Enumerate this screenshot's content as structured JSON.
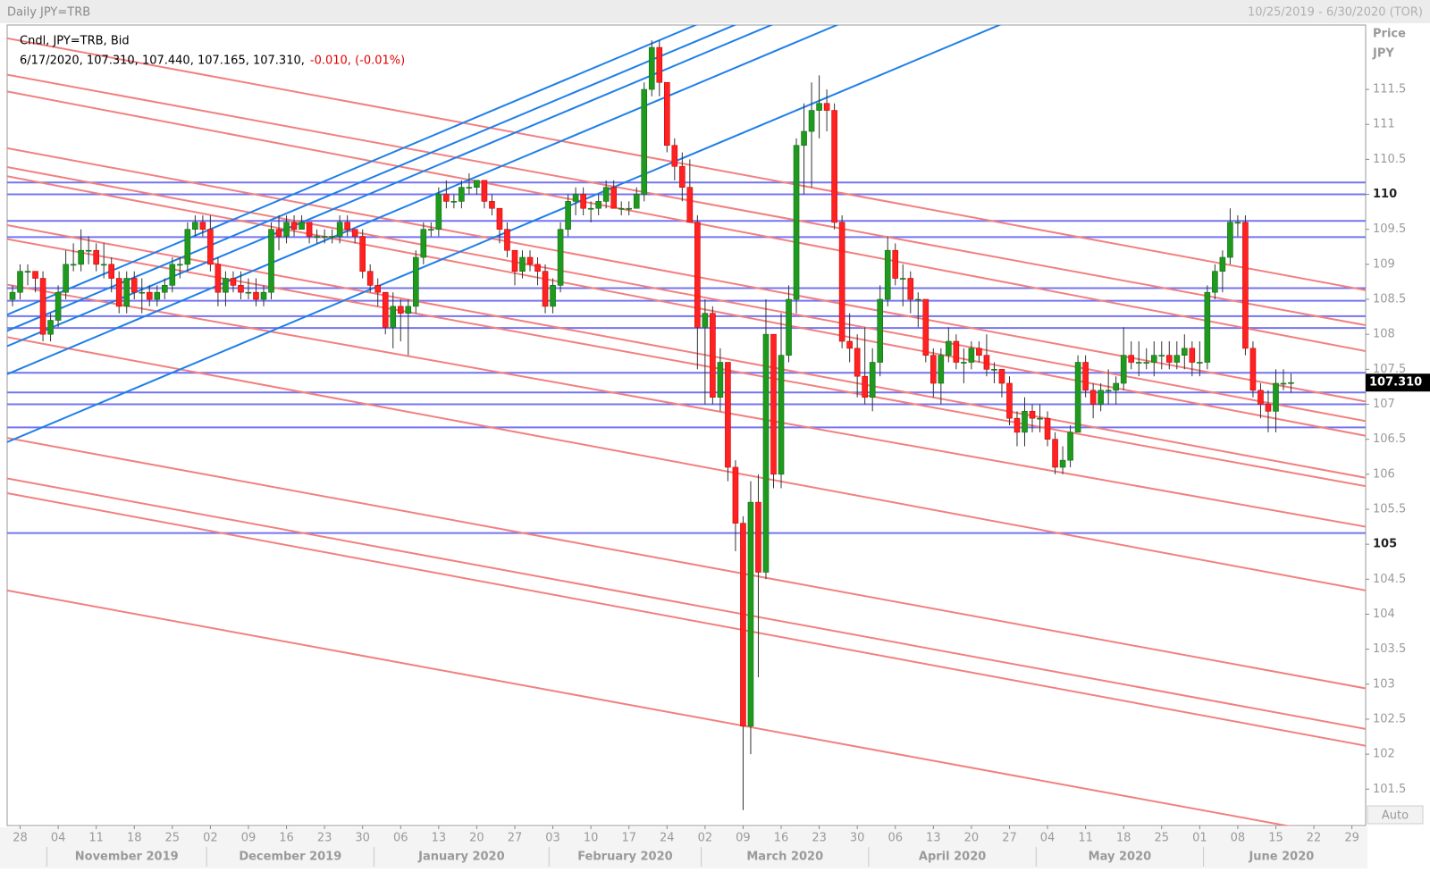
{
  "header": {
    "title": "Daily JPY=TRB",
    "range": "10/25/2019 - 6/30/2020 (TOR)"
  },
  "chart_data": {
    "type": "candlestick",
    "legend_title": "Cndl, JPY=TRB, Bid",
    "legend_values": "6/17/2020, 107.310, 107.440, 107.165, 107.310,",
    "legend_change": "-0.010, (-0.01%)",
    "axis_title": "Price",
    "axis_unit": "JPY",
    "scale_mode": "Auto",
    "up_color": "#1f9a1f",
    "down_color": "#ff2222",
    "ylim": [
      100.98,
      112.42
    ],
    "yticks": [
      101.5,
      102,
      102.5,
      103,
      103.5,
      104,
      104.5,
      105,
      105.5,
      106,
      106.5,
      107,
      107.5,
      108,
      108.5,
      109,
      109.5,
      110,
      110.5,
      111,
      111.5
    ],
    "major_tick_step": 5,
    "last_price": {
      "value": 107.31,
      "label": "107.310"
    },
    "xticks": [
      "28",
      "04",
      "11",
      "18",
      "25",
      "02",
      "09",
      "16",
      "23",
      "30",
      "06",
      "13",
      "20",
      "27",
      "03",
      "10",
      "17",
      "24",
      "02",
      "09",
      "16",
      "23",
      "30",
      "06",
      "13",
      "20",
      "27",
      "04",
      "11",
      "18",
      "25",
      "01",
      "08",
      "15",
      "22",
      "29"
    ],
    "months": [
      "November 2019",
      "December 2019",
      "January 2020",
      "February 2020",
      "March 2020",
      "April 2020",
      "May 2020",
      "June 2020"
    ],
    "ohlc": [
      [
        108.5,
        108.7,
        108.4,
        108.6
      ],
      [
        108.6,
        109.0,
        108.5,
        108.9
      ],
      [
        108.9,
        109.0,
        108.7,
        108.9
      ],
      [
        108.9,
        108.9,
        108.6,
        108.8
      ],
      [
        108.8,
        108.9,
        107.9,
        108.0
      ],
      [
        108.0,
        108.3,
        107.9,
        108.2
      ],
      [
        108.2,
        108.7,
        108.1,
        108.6
      ],
      [
        108.6,
        109.2,
        108.5,
        109.0
      ],
      [
        109.0,
        109.3,
        108.9,
        109.0
      ],
      [
        109.0,
        109.5,
        108.9,
        109.2
      ],
      [
        109.2,
        109.4,
        109.0,
        109.2
      ],
      [
        109.2,
        109.3,
        108.9,
        109.0
      ],
      [
        109.0,
        109.3,
        108.8,
        109.0
      ],
      [
        109.0,
        109.1,
        108.6,
        108.8
      ],
      [
        108.8,
        108.9,
        108.3,
        108.4
      ],
      [
        108.4,
        108.9,
        108.3,
        108.8
      ],
      [
        108.8,
        108.9,
        108.5,
        108.6
      ],
      [
        108.6,
        108.8,
        108.3,
        108.6
      ],
      [
        108.6,
        108.7,
        108.4,
        108.5
      ],
      [
        108.5,
        108.7,
        108.4,
        108.6
      ],
      [
        108.6,
        108.8,
        108.5,
        108.7
      ],
      [
        108.7,
        109.1,
        108.6,
        109.0
      ],
      [
        109.0,
        109.1,
        108.8,
        109.0
      ],
      [
        109.0,
        109.6,
        108.9,
        109.5
      ],
      [
        109.5,
        109.7,
        109.4,
        109.6
      ],
      [
        109.6,
        109.7,
        109.4,
        109.5
      ],
      [
        109.5,
        109.7,
        108.9,
        109.0
      ],
      [
        109.0,
        109.1,
        108.4,
        108.6
      ],
      [
        108.6,
        108.9,
        108.4,
        108.8
      ],
      [
        108.8,
        108.9,
        108.6,
        108.7
      ],
      [
        108.7,
        108.9,
        108.5,
        108.6
      ],
      [
        108.6,
        108.8,
        108.5,
        108.6
      ],
      [
        108.6,
        108.8,
        108.4,
        108.5
      ],
      [
        108.5,
        108.7,
        108.4,
        108.6
      ],
      [
        108.6,
        109.6,
        108.5,
        109.5
      ],
      [
        109.5,
        109.7,
        109.2,
        109.4
      ],
      [
        109.4,
        109.7,
        109.3,
        109.6
      ],
      [
        109.6,
        109.7,
        109.4,
        109.5
      ],
      [
        109.5,
        109.7,
        109.5,
        109.6
      ],
      [
        109.6,
        109.6,
        109.3,
        109.4
      ],
      [
        109.4,
        109.5,
        109.3,
        109.4
      ],
      [
        109.4,
        109.5,
        109.3,
        109.4
      ],
      [
        109.4,
        109.5,
        109.3,
        109.4
      ],
      [
        109.4,
        109.7,
        109.3,
        109.6
      ],
      [
        109.6,
        109.7,
        109.4,
        109.5
      ],
      [
        109.5,
        109.5,
        109.3,
        109.4
      ],
      [
        109.4,
        109.5,
        108.8,
        108.9
      ],
      [
        108.9,
        109.0,
        108.6,
        108.7
      ],
      [
        108.7,
        108.8,
        108.4,
        108.6
      ],
      [
        108.6,
        108.6,
        108.0,
        108.1
      ],
      [
        108.1,
        108.6,
        107.8,
        108.4
      ],
      [
        108.4,
        108.5,
        107.9,
        108.3
      ],
      [
        108.3,
        108.5,
        107.7,
        108.4
      ],
      [
        108.4,
        109.2,
        108.3,
        109.1
      ],
      [
        109.1,
        109.6,
        109.0,
        109.5
      ],
      [
        109.5,
        109.6,
        109.4,
        109.5
      ],
      [
        109.5,
        110.1,
        109.4,
        110.0
      ],
      [
        110.0,
        110.2,
        109.8,
        109.9
      ],
      [
        109.9,
        110.0,
        109.8,
        109.9
      ],
      [
        109.9,
        110.2,
        109.8,
        110.1
      ],
      [
        110.1,
        110.3,
        110.0,
        110.1
      ],
      [
        110.1,
        110.2,
        110.0,
        110.2
      ],
      [
        110.2,
        110.2,
        109.8,
        109.9
      ],
      [
        109.9,
        110.0,
        109.7,
        109.8
      ],
      [
        109.8,
        109.8,
        109.3,
        109.5
      ],
      [
        109.5,
        109.6,
        109.1,
        109.2
      ],
      [
        109.2,
        109.2,
        108.7,
        108.9
      ],
      [
        108.9,
        109.2,
        108.8,
        109.1
      ],
      [
        109.1,
        109.2,
        108.9,
        109.0
      ],
      [
        109.0,
        109.1,
        108.7,
        108.9
      ],
      [
        108.9,
        109.0,
        108.3,
        108.4
      ],
      [
        108.4,
        108.8,
        108.3,
        108.7
      ],
      [
        108.7,
        109.6,
        108.6,
        109.5
      ],
      [
        109.5,
        110.0,
        109.4,
        109.9
      ],
      [
        109.9,
        110.1,
        109.7,
        110.0
      ],
      [
        110.0,
        110.1,
        109.7,
        109.8
      ],
      [
        109.8,
        109.9,
        109.6,
        109.8
      ],
      [
        109.8,
        110.0,
        109.7,
        109.9
      ],
      [
        109.9,
        110.2,
        109.8,
        110.1
      ],
      [
        110.1,
        110.2,
        109.8,
        109.8
      ],
      [
        109.8,
        109.9,
        109.7,
        109.8
      ],
      [
        109.8,
        109.9,
        109.7,
        109.8
      ],
      [
        109.8,
        110.1,
        109.8,
        110.0
      ],
      [
        110.0,
        111.6,
        109.9,
        111.5
      ],
      [
        111.5,
        112.2,
        111.4,
        112.1
      ],
      [
        112.1,
        112.2,
        111.4,
        111.6
      ],
      [
        111.6,
        111.6,
        110.6,
        110.7
      ],
      [
        110.7,
        110.8,
        110.2,
        110.4
      ],
      [
        110.4,
        110.6,
        109.9,
        110.1
      ],
      [
        110.1,
        110.5,
        109.6,
        109.6
      ],
      [
        109.6,
        109.7,
        107.5,
        108.1
      ],
      [
        108.1,
        108.5,
        107.0,
        108.3
      ],
      [
        108.3,
        108.4,
        107.0,
        107.1
      ],
      [
        107.1,
        107.8,
        106.9,
        107.6
      ],
      [
        107.6,
        107.6,
        105.9,
        106.1
      ],
      [
        106.1,
        106.2,
        104.9,
        105.3
      ],
      [
        105.3,
        105.4,
        101.2,
        102.4
      ],
      [
        102.4,
        105.9,
        102.0,
        105.6
      ],
      [
        105.6,
        106.0,
        103.1,
        104.6
      ],
      [
        104.6,
        108.5,
        104.5,
        108.0
      ],
      [
        108.0,
        108.0,
        105.8,
        106.0
      ],
      [
        106.0,
        108.3,
        105.8,
        107.7
      ],
      [
        107.7,
        108.7,
        107.6,
        108.5
      ],
      [
        108.5,
        110.8,
        108.3,
        110.7
      ],
      [
        110.7,
        111.3,
        110.0,
        110.9
      ],
      [
        110.9,
        111.6,
        110.1,
        111.2
      ],
      [
        111.2,
        111.7,
        110.8,
        111.3
      ],
      [
        111.3,
        111.5,
        110.9,
        111.2
      ],
      [
        111.2,
        111.3,
        109.5,
        109.6
      ],
      [
        109.6,
        109.7,
        107.8,
        107.9
      ],
      [
        107.9,
        108.3,
        107.6,
        107.8
      ],
      [
        107.8,
        108.0,
        107.1,
        107.4
      ],
      [
        107.4,
        108.1,
        107.0,
        107.1
      ],
      [
        107.1,
        107.8,
        106.9,
        107.6
      ],
      [
        107.6,
        108.7,
        107.4,
        108.5
      ],
      [
        108.5,
        109.4,
        108.4,
        109.2
      ],
      [
        109.2,
        109.3,
        108.7,
        108.8
      ],
      [
        108.8,
        109.0,
        108.4,
        108.8
      ],
      [
        108.8,
        108.9,
        108.3,
        108.5
      ],
      [
        108.5,
        108.6,
        108.1,
        108.5
      ],
      [
        108.5,
        108.5,
        107.6,
        107.7
      ],
      [
        107.7,
        107.8,
        107.1,
        107.3
      ],
      [
        107.3,
        107.8,
        107.0,
        107.7
      ],
      [
        107.7,
        108.1,
        107.6,
        107.9
      ],
      [
        107.9,
        108.0,
        107.5,
        107.6
      ],
      [
        107.6,
        107.8,
        107.3,
        107.6
      ],
      [
        107.6,
        107.9,
        107.5,
        107.8
      ],
      [
        107.8,
        107.9,
        107.6,
        107.7
      ],
      [
        107.7,
        108.0,
        107.4,
        107.5
      ],
      [
        107.5,
        107.6,
        107.3,
        107.5
      ],
      [
        107.5,
        107.5,
        107.1,
        107.3
      ],
      [
        107.3,
        107.4,
        106.7,
        106.8
      ],
      [
        106.8,
        106.9,
        106.4,
        106.6
      ],
      [
        106.6,
        107.1,
        106.4,
        106.9
      ],
      [
        106.9,
        107.0,
        106.6,
        106.8
      ],
      [
        106.8,
        107.0,
        106.6,
        106.8
      ],
      [
        106.8,
        106.9,
        106.4,
        106.5
      ],
      [
        106.5,
        106.6,
        106.0,
        106.1
      ],
      [
        106.1,
        106.4,
        106.0,
        106.2
      ],
      [
        106.2,
        106.7,
        106.1,
        106.6
      ],
      [
        106.6,
        107.7,
        106.6,
        107.6
      ],
      [
        107.6,
        107.7,
        107.1,
        107.2
      ],
      [
        107.2,
        107.3,
        106.8,
        107.0
      ],
      [
        107.0,
        107.3,
        106.9,
        107.2
      ],
      [
        107.2,
        107.5,
        107.0,
        107.2
      ],
      [
        107.2,
        107.4,
        107.0,
        107.3
      ],
      [
        107.3,
        108.1,
        107.2,
        107.7
      ],
      [
        107.7,
        107.9,
        107.5,
        107.6
      ],
      [
        107.6,
        107.9,
        107.4,
        107.6
      ],
      [
        107.6,
        107.8,
        107.5,
        107.6
      ],
      [
        107.6,
        107.9,
        107.4,
        107.7
      ],
      [
        107.7,
        107.9,
        107.5,
        107.7
      ],
      [
        107.7,
        107.9,
        107.5,
        107.6
      ],
      [
        107.6,
        107.9,
        107.5,
        107.7
      ],
      [
        107.7,
        108.0,
        107.5,
        107.8
      ],
      [
        107.8,
        107.9,
        107.4,
        107.6
      ],
      [
        107.6,
        107.9,
        107.4,
        107.6
      ],
      [
        107.6,
        108.7,
        107.5,
        108.6
      ],
      [
        108.6,
        109.0,
        108.5,
        108.9
      ],
      [
        108.9,
        109.2,
        108.6,
        109.1
      ],
      [
        109.1,
        109.8,
        109.0,
        109.6
      ],
      [
        109.6,
        109.7,
        109.4,
        109.6
      ],
      [
        109.6,
        109.7,
        107.7,
        107.8
      ],
      [
        107.8,
        107.9,
        107.1,
        107.2
      ],
      [
        107.2,
        107.3,
        106.8,
        107.0
      ],
      [
        107.0,
        107.2,
        106.6,
        106.9
      ],
      [
        106.9,
        107.5,
        106.6,
        107.3
      ],
      [
        107.3,
        107.5,
        107.2,
        107.3
      ],
      [
        107.3,
        107.44,
        107.165,
        107.31
      ]
    ],
    "horizontal_lines": {
      "color": "#7474f2",
      "values": [
        110.17,
        110.0,
        109.62,
        109.39,
        108.66,
        108.48,
        108.26,
        108.09,
        107.45,
        107.17,
        107.0,
        106.67,
        105.16
      ]
    },
    "trend_lines": [
      {
        "color": "#f28080",
        "lines": [
          [
            112.23,
            108.63
          ],
          [
            111.71,
            108.13
          ],
          [
            111.47,
            107.76
          ],
          [
            110.66,
            107.04
          ],
          [
            110.39,
            106.76
          ],
          [
            110.26,
            106.55
          ],
          [
            109.56,
            105.95
          ],
          [
            109.36,
            105.83
          ],
          [
            108.71,
            105.25
          ],
          [
            107.96,
            104.34
          ],
          [
            106.52,
            102.94
          ],
          [
            105.94,
            102.36
          ],
          [
            105.73,
            102.12
          ],
          [
            104.34,
            100.77
          ]
        ]
      },
      {
        "color": "#1f7fe8",
        "lines": [
          [
            108.28,
            116.45
          ],
          [
            108.05,
            116.21
          ],
          [
            107.83,
            115.99
          ],
          [
            107.43,
            115.6
          ],
          [
            106.46,
            114.62
          ]
        ]
      }
    ]
  }
}
